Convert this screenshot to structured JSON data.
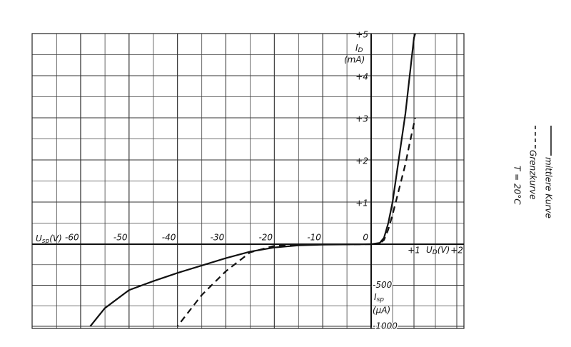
{
  "chart_data": [
    {
      "type": "line",
      "x_label": {
        "symbol": "U",
        "subscript": "D",
        "unit": "(V)"
      },
      "y_label": {
        "symbol": "I",
        "subscript": "D",
        "unit": "(mA)"
      },
      "xlim": [
        0,
        2
      ],
      "ylim": [
        0,
        5
      ],
      "xticks": [
        0,
        {
          "value": 1,
          "label": "+1"
        },
        {
          "value": 2,
          "label": "+2"
        }
      ],
      "yticks": [
        {
          "value": 1,
          "label": "+1"
        },
        {
          "value": 2,
          "label": "+2"
        },
        {
          "value": 3,
          "label": "+3"
        },
        {
          "value": 4,
          "label": "+4"
        },
        {
          "value": 5,
          "label": "+5"
        }
      ],
      "series": [
        {
          "name": "mittlere Kurve",
          "color": "#111111",
          "dash": false,
          "x": [
            0,
            0.2,
            0.3,
            0.4,
            0.5,
            0.6,
            0.7,
            0.8,
            0.9,
            1.0,
            1.03
          ],
          "values": [
            0,
            0.03,
            0.15,
            0.5,
            1.0,
            1.7,
            2.4,
            3.1,
            4.0,
            4.9,
            5.0
          ]
        },
        {
          "name": "Grenzkurve",
          "color": "#111111",
          "dash": true,
          "x": [
            0,
            0.2,
            0.3,
            0.4,
            0.5,
            0.6,
            0.7,
            0.8,
            0.9,
            1.03
          ],
          "values": [
            0,
            0.02,
            0.1,
            0.35,
            0.7,
            1.1,
            1.5,
            1.9,
            2.4,
            3.0
          ]
        }
      ],
      "annotation": "T = 20°C"
    },
    {
      "type": "line",
      "x_label": {
        "symbol": "U",
        "subscript": "sp",
        "unit": "(V)"
      },
      "y_label": {
        "symbol": "I",
        "subscript": "sp",
        "unit": "(µA)"
      },
      "xlim": [
        -70,
        0
      ],
      "ylim": [
        -1000,
        0
      ],
      "xticks": [
        -60,
        -50,
        -40,
        -30,
        -20,
        -10
      ],
      "yticks": [
        -500,
        -1000
      ],
      "series": [
        {
          "name": "mittlere Kurve",
          "color": "#111111",
          "dash": false,
          "x": [
            0,
            -10,
            -15,
            -20,
            -25,
            -30,
            -35,
            -40,
            -45,
            -50,
            -55,
            -58
          ],
          "values": [
            0,
            -5,
            -15,
            -40,
            -90,
            -170,
            -260,
            -350,
            -450,
            -560,
            -780,
            -1000
          ]
        },
        {
          "name": "Grenzkurve",
          "color": "#111111",
          "dash": true,
          "x": [
            0,
            -15,
            -20,
            -25,
            -30,
            -35,
            -40
          ],
          "values": [
            0,
            -5,
            -20,
            -100,
            -330,
            -620,
            -1000
          ]
        }
      ]
    }
  ]
}
